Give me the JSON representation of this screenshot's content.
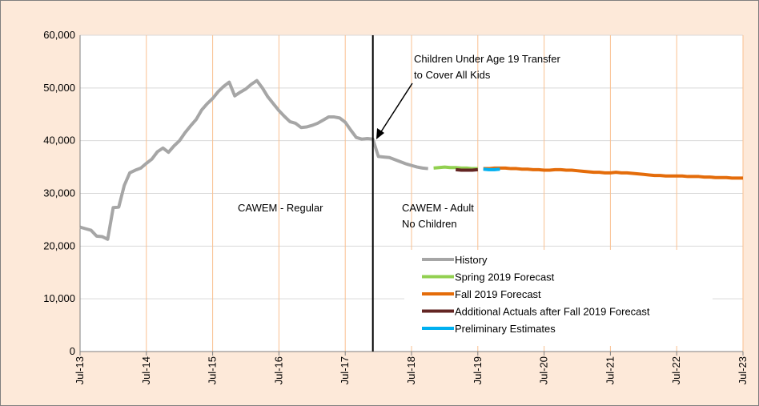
{
  "chart_data": {
    "type": "line",
    "xlim": [
      "Jul-13",
      "Jul-23"
    ],
    "xticks": [
      "Jul-13",
      "Jul-14",
      "Jul-15",
      "Jul-16",
      "Jul-17",
      "Jul-18",
      "Jul-19",
      "Jul-20",
      "Jul-21",
      "Jul-22",
      "Jul-23"
    ],
    "ylim": [
      0,
      60000
    ],
    "yticks": [
      0,
      {
        "value": 10000,
        "label": "10,000"
      },
      {
        "value": 20000,
        "label": "20,000"
      },
      {
        "value": 30000,
        "label": "30,000"
      },
      {
        "value": 40000,
        "label": "40,000"
      },
      {
        "value": 50000,
        "label": "50,000"
      },
      {
        "value": 60000,
        "label": "60,000"
      }
    ],
    "grid": true,
    "legend": "lower right",
    "vline": "Dec-17",
    "annotations": [
      "Children Under Age 19 Transfer\nto Cover All Kids",
      "CAWEM - Regular",
      "CAWEM - Adult\nNo Children"
    ],
    "series": [
      {
        "name": "History",
        "color": "#a6a6a6",
        "x": [
          "Jul-13",
          "Aug-13",
          "Sep-13",
          "Oct-13",
          "Nov-13",
          "Dec-13",
          "Jan-14",
          "Feb-14",
          "Mar-14",
          "Apr-14",
          "May-14",
          "Jun-14",
          "Jul-14",
          "Aug-14",
          "Sep-14",
          "Oct-14",
          "Nov-14",
          "Dec-14",
          "Jan-15",
          "Feb-15",
          "Mar-15",
          "Apr-15",
          "May-15",
          "Jun-15",
          "Jul-15",
          "Aug-15",
          "Sep-15",
          "Oct-15",
          "Nov-15",
          "Dec-15",
          "Jan-16",
          "Feb-16",
          "Mar-16",
          "Apr-16",
          "May-16",
          "Jun-16",
          "Jul-16",
          "Aug-16",
          "Sep-16",
          "Oct-16",
          "Nov-16",
          "Dec-16",
          "Jan-17",
          "Feb-17",
          "Mar-17",
          "Apr-17",
          "May-17",
          "Jun-17",
          "Jul-17",
          "Aug-17",
          "Sep-17",
          "Oct-17",
          "Nov-17",
          "Dec-17",
          "Jan-18",
          "Feb-18",
          "Mar-18",
          "Apr-18",
          "May-18",
          "Jun-18",
          "Jul-18",
          "Aug-18",
          "Sep-18",
          "Oct-18"
        ],
        "values": [
          23600,
          23300,
          23000,
          21900,
          21800,
          21300,
          27300,
          27400,
          31500,
          33900,
          34400,
          34800,
          35700,
          36500,
          37900,
          38600,
          37800,
          39000,
          40000,
          41500,
          42800,
          44000,
          45800,
          47000,
          48000,
          49300,
          50300,
          51100,
          48500,
          49200,
          49800,
          50700,
          51400,
          50000,
          48300,
          47000,
          45700,
          44600,
          43600,
          43300,
          42500,
          42600,
          42900,
          43300,
          43900,
          44500,
          44500,
          44300,
          43500,
          42000,
          40600,
          40300,
          40400,
          40300,
          37000,
          36900,
          36800,
          36400,
          36000,
          35600,
          35300,
          35000,
          34800,
          34700
        ]
      },
      {
        "name": "Spring 2019 Forecast",
        "color": "#92d050",
        "x": [
          "Nov-18",
          "Dec-18",
          "Jan-19",
          "Feb-19",
          "Mar-19",
          "Apr-19",
          "May-19",
          "Jun-19",
          "Jul-19"
        ],
        "values": [
          34800,
          34900,
          35000,
          34900,
          34900,
          34800,
          34800,
          34700,
          34700
        ]
      },
      {
        "name": "Fall 2019 Forecast",
        "color": "#e46c0a",
        "x": [
          "Aug-19",
          "Sep-19",
          "Oct-19",
          "Nov-19",
          "Dec-19",
          "Jan-20",
          "Feb-20",
          "Mar-20",
          "Apr-20",
          "May-20",
          "Jun-20",
          "Jul-20",
          "Aug-20",
          "Sep-20",
          "Oct-20",
          "Nov-20",
          "Dec-20",
          "Jan-21",
          "Feb-21",
          "Mar-21",
          "Apr-21",
          "May-21",
          "Jun-21",
          "Jul-21",
          "Aug-21",
          "Sep-21",
          "Oct-21",
          "Nov-21",
          "Dec-21",
          "Jan-22",
          "Feb-22",
          "Mar-22",
          "Apr-22",
          "May-22",
          "Jun-22",
          "Jul-22",
          "Aug-22",
          "Sep-22",
          "Oct-22",
          "Nov-22",
          "Dec-22",
          "Jan-23",
          "Feb-23",
          "Mar-23",
          "Apr-23",
          "May-23",
          "Jun-23",
          "Jul-23"
        ],
        "values": [
          34700,
          34700,
          34800,
          34800,
          34800,
          34700,
          34700,
          34600,
          34600,
          34500,
          34500,
          34400,
          34400,
          34500,
          34500,
          34400,
          34400,
          34300,
          34200,
          34100,
          34000,
          34000,
          33900,
          33900,
          34000,
          33900,
          33900,
          33800,
          33700,
          33600,
          33500,
          33400,
          33400,
          33300,
          33300,
          33300,
          33300,
          33200,
          33200,
          33200,
          33100,
          33100,
          33000,
          33000,
          33000,
          32900,
          32900,
          32900
        ]
      },
      {
        "name": "Additional Actuals after Fall 2019 Forecast",
        "color": "#632523",
        "x": [
          "Mar-19",
          "Apr-19",
          "May-19",
          "Jun-19",
          "Jul-19"
        ],
        "values": [
          34500,
          34400,
          34400,
          34400,
          34500
        ]
      },
      {
        "name": "Preliminary Estimates",
        "color": "#00b0f0",
        "x": [
          "Aug-19",
          "Sep-19",
          "Oct-19",
          "Nov-19"
        ],
        "values": [
          34600,
          34500,
          34500,
          34600
        ]
      }
    ]
  }
}
